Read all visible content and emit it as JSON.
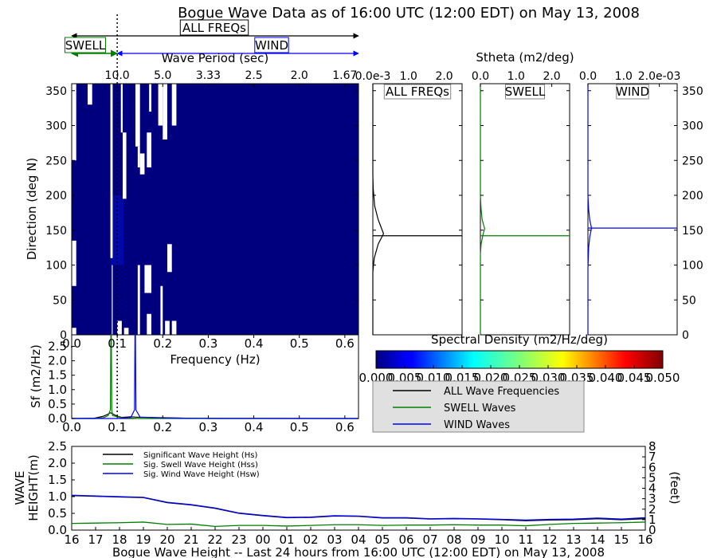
{
  "title": "Bogue Wave Data as of 16:00 UTC (12:00 EDT) on May 13, 2008",
  "band_labels": {
    "all": "ALL FREQs",
    "swell": "SWELL",
    "wind": "WIND"
  },
  "colors": {
    "all": "#000000",
    "swell": "#008000",
    "wind": "#0000ff",
    "background_fill": "#00007f",
    "legend_bg": "#e0e0e0"
  },
  "chart_data": [
    {
      "id": "directional-spectrum",
      "type": "heatmap",
      "top_axis_label": "Wave Period (sec)",
      "top_ticks": [
        {
          "freq": 0.1,
          "label": "10.0"
        },
        {
          "freq": 0.2,
          "label": "5.0"
        },
        {
          "freq": 0.3,
          "label": "3.33"
        },
        {
          "freq": 0.4,
          "label": "2.5"
        },
        {
          "freq": 0.5,
          "label": "2.0"
        },
        {
          "freq": 0.6,
          "label": "1.67"
        }
      ],
      "ylabel": "Direction (deg N)",
      "ylim": [
        0,
        360
      ],
      "yticks": [
        0,
        50,
        100,
        150,
        200,
        250,
        300,
        350
      ],
      "xlim": [
        0.0,
        0.63
      ],
      "separation_freq": 0.1,
      "white_cells": [
        {
          "f": [
            0.0,
            0.01
          ],
          "d": [
            250,
            360
          ]
        },
        {
          "f": [
            0.0,
            0.01
          ],
          "d": [
            70,
            135
          ]
        },
        {
          "f": [
            0.0,
            0.01
          ],
          "d": [
            0,
            10
          ]
        },
        {
          "f": [
            0.035,
            0.045
          ],
          "d": [
            330,
            360
          ]
        },
        {
          "f": [
            0.085,
            0.09
          ],
          "d": [
            110,
            360
          ]
        },
        {
          "f": [
            0.088,
            0.09
          ],
          "d": [
            0,
            100
          ]
        },
        {
          "f": [
            0.1,
            0.11
          ],
          "d": [
            0,
            20
          ]
        },
        {
          "f": [
            0.108,
            0.112
          ],
          "d": [
            290,
            360
          ]
        },
        {
          "f": [
            0.112,
            0.12
          ],
          "d": [
            195,
            290
          ]
        },
        {
          "f": [
            0.115,
            0.125
          ],
          "d": [
            0,
            10
          ]
        },
        {
          "f": [
            0.14,
            0.15
          ],
          "d": [
            270,
            360
          ]
        },
        {
          "f": [
            0.145,
            0.15
          ],
          "d": [
            240,
            270
          ]
        },
        {
          "f": [
            0.145,
            0.15
          ],
          "d": [
            0,
            100
          ]
        },
        {
          "f": [
            0.15,
            0.16
          ],
          "d": [
            230,
            260
          ]
        },
        {
          "f": [
            0.17,
            0.175
          ],
          "d": [
            320,
            360
          ]
        },
        {
          "f": [
            0.165,
            0.175
          ],
          "d": [
            240,
            290
          ]
        },
        {
          "f": [
            0.16,
            0.175
          ],
          "d": [
            60,
            100
          ]
        },
        {
          "f": [
            0.165,
            0.175
          ],
          "d": [
            0,
            30
          ]
        },
        {
          "f": [
            0.19,
            0.2
          ],
          "d": [
            300,
            360
          ]
        },
        {
          "f": [
            0.195,
            0.2
          ],
          "d": [
            0,
            70
          ]
        },
        {
          "f": [
            0.2,
            0.21
          ],
          "d": [
            280,
            360
          ]
        },
        {
          "f": [
            0.21,
            0.22
          ],
          "d": [
            90,
            130
          ]
        },
        {
          "f": [
            0.205,
            0.215
          ],
          "d": [
            0,
            20
          ]
        },
        {
          "f": [
            0.22,
            0.23
          ],
          "d": [
            300,
            360
          ]
        },
        {
          "f": [
            0.22,
            0.23
          ],
          "d": [
            0,
            20
          ]
        }
      ],
      "colorbar": {
        "label": "Spectral Density (m2/Hz/deg)",
        "range": [
          0.0,
          0.05
        ],
        "ticks": [
          "0.000",
          "0.005",
          "0.010",
          "0.015",
          "0.020",
          "0.025",
          "0.030",
          "0.035",
          "0.040",
          "0.045",
          "0.050"
        ]
      }
    },
    {
      "id": "directional-profiles",
      "type": "line",
      "xlabel": "Stheta (m2/deg)",
      "ylabel": "Direction (deg N)",
      "ylim": [
        0,
        360
      ],
      "panels": [
        {
          "label": "ALL FREQs",
          "color": "#000000",
          "x_ticks": [
            "0.0e-3",
            "1.0",
            "2.0"
          ],
          "xmax": 2.5,
          "mean_dir": 142,
          "profile": [
            [
              0,
              0
            ],
            [
              0,
              90
            ],
            [
              0.04,
              110
            ],
            [
              0.15,
              130
            ],
            [
              0.3,
              145
            ],
            [
              0.15,
              165
            ],
            [
              0.05,
              185
            ],
            [
              0.01,
              210
            ],
            [
              0,
              230
            ],
            [
              0,
              360
            ]
          ]
        },
        {
          "label": "SWELL",
          "color": "#008000",
          "x_ticks": [
            "0.0",
            "1.0",
            "2.0"
          ],
          "xmax": 2.5,
          "mean_dir": 142,
          "profile": [
            [
              0,
              0
            ],
            [
              0,
              115
            ],
            [
              0.02,
              130
            ],
            [
              0.08,
              145
            ],
            [
              0.12,
              152
            ],
            [
              0.05,
              165
            ],
            [
              0.02,
              180
            ],
            [
              0,
              200
            ],
            [
              0,
              360
            ]
          ]
        },
        {
          "label": "WIND",
          "color": "#0000ff",
          "x_ticks": [
            "0.0",
            "1.0",
            "2.0e-03"
          ],
          "xmax": 2.5,
          "mean_dir": 153,
          "profile": [
            [
              0,
              0
            ],
            [
              0,
              95
            ],
            [
              0.02,
              125
            ],
            [
              0.05,
              140
            ],
            [
              0.1,
              153
            ],
            [
              0.05,
              165
            ],
            [
              0.02,
              180
            ],
            [
              0,
              200
            ],
            [
              0,
              360
            ]
          ]
        }
      ]
    },
    {
      "id": "frequency-spectrum",
      "type": "line",
      "xlabel": "Frequency (Hz)",
      "ylabel": "Sf (m2/Hz)",
      "xlim": [
        0.0,
        0.63
      ],
      "ylim": [
        0.0,
        2.9
      ],
      "xticks": [
        "0.0",
        "0.1",
        "0.2",
        "0.3",
        "0.4",
        "0.5",
        "0.6"
      ],
      "yticks": [
        "0.0",
        "0.5",
        "1.0",
        "1.5",
        "2.0",
        "2.5"
      ],
      "separation_freq": 0.1,
      "series": [
        {
          "name": "ALL Wave Frequencies",
          "color": "#000000",
          "x": [
            0.0,
            0.05,
            0.07,
            0.08,
            0.085,
            0.09,
            0.1,
            0.11,
            0.13,
            0.15,
            0.2,
            0.25,
            0.3,
            0.63
          ],
          "y": [
            0.0,
            0.01,
            0.08,
            0.15,
            0.2,
            0.16,
            0.08,
            0.04,
            0.06,
            0.04,
            0.03,
            0.01,
            0.0,
            0.0
          ]
        },
        {
          "name": "SWELL Waves",
          "color": "#008000",
          "x": [
            0.0,
            0.05,
            0.07,
            0.08,
            0.085,
            0.086,
            0.087,
            0.088,
            0.09,
            0.1,
            0.11,
            0.15,
            0.63
          ],
          "y": [
            0.0,
            0.0,
            0.03,
            0.1,
            0.3,
            2.9,
            2.9,
            0.3,
            0.1,
            0.06,
            0.03,
            0.0,
            0.0
          ]
        },
        {
          "name": "WIND Waves",
          "color": "#0000ff",
          "x": [
            0.0,
            0.1,
            0.13,
            0.138,
            0.139,
            0.14,
            0.141,
            0.15,
            0.2,
            0.25,
            0.63
          ],
          "y": [
            0.0,
            0.0,
            0.04,
            0.3,
            2.9,
            2.9,
            0.3,
            0.05,
            0.02,
            0.01,
            0.0
          ]
        }
      ]
    },
    {
      "id": "wave-height-history",
      "type": "line",
      "xlabel": "Bogue Wave Height -- Last 24 hours from 16:00 UTC (12:00 EDT) on May 13, 2008",
      "ylabel_line1": "WAVE",
      "ylabel_line2": "HEIGHT(m)",
      "ylabel_right": "(feet)",
      "categories": [
        "16",
        "17",
        "18",
        "19",
        "20",
        "21",
        "22",
        "23",
        "00",
        "01",
        "02",
        "03",
        "04",
        "05",
        "06",
        "07",
        "08",
        "09",
        "10",
        "11",
        "12",
        "13",
        "14",
        "15",
        "16"
      ],
      "ylim": [
        0.0,
        2.5
      ],
      "yticks": [
        "0.0",
        "0.5",
        "1.0",
        "1.5",
        "2.0",
        "2.5"
      ],
      "yticks_right": [
        "0",
        "1",
        "2",
        "3",
        "4",
        "5",
        "6",
        "7",
        "8"
      ],
      "series": [
        {
          "name": "Significant Wave Height (Hs)",
          "color": "#000000",
          "values": [
            1.03,
            1.01,
            0.99,
            0.97,
            0.82,
            0.75,
            0.65,
            0.5,
            0.43,
            0.37,
            0.38,
            0.42,
            0.41,
            0.36,
            0.36,
            0.33,
            0.34,
            0.33,
            0.31,
            0.28,
            0.3,
            0.31,
            0.34,
            0.31,
            0.34
          ]
        },
        {
          "name": "Sig. Swell Wave Height (Hss)",
          "color": "#008000",
          "values": [
            0.2,
            0.21,
            0.22,
            0.24,
            0.17,
            0.18,
            0.11,
            0.14,
            0.14,
            0.12,
            0.14,
            0.16,
            0.16,
            0.14,
            0.15,
            0.15,
            0.16,
            0.15,
            0.15,
            0.13,
            0.17,
            0.2,
            0.21,
            0.22,
            0.24
          ]
        },
        {
          "name": "Sig. Wind Wave Height (Hsw)",
          "color": "#0000ff",
          "values": [
            1.04,
            1.02,
            1.0,
            0.98,
            0.83,
            0.76,
            0.66,
            0.51,
            0.44,
            0.38,
            0.39,
            0.43,
            0.42,
            0.37,
            0.37,
            0.34,
            0.35,
            0.34,
            0.32,
            0.3,
            0.32,
            0.33,
            0.36,
            0.33,
            0.37
          ]
        }
      ]
    }
  ]
}
